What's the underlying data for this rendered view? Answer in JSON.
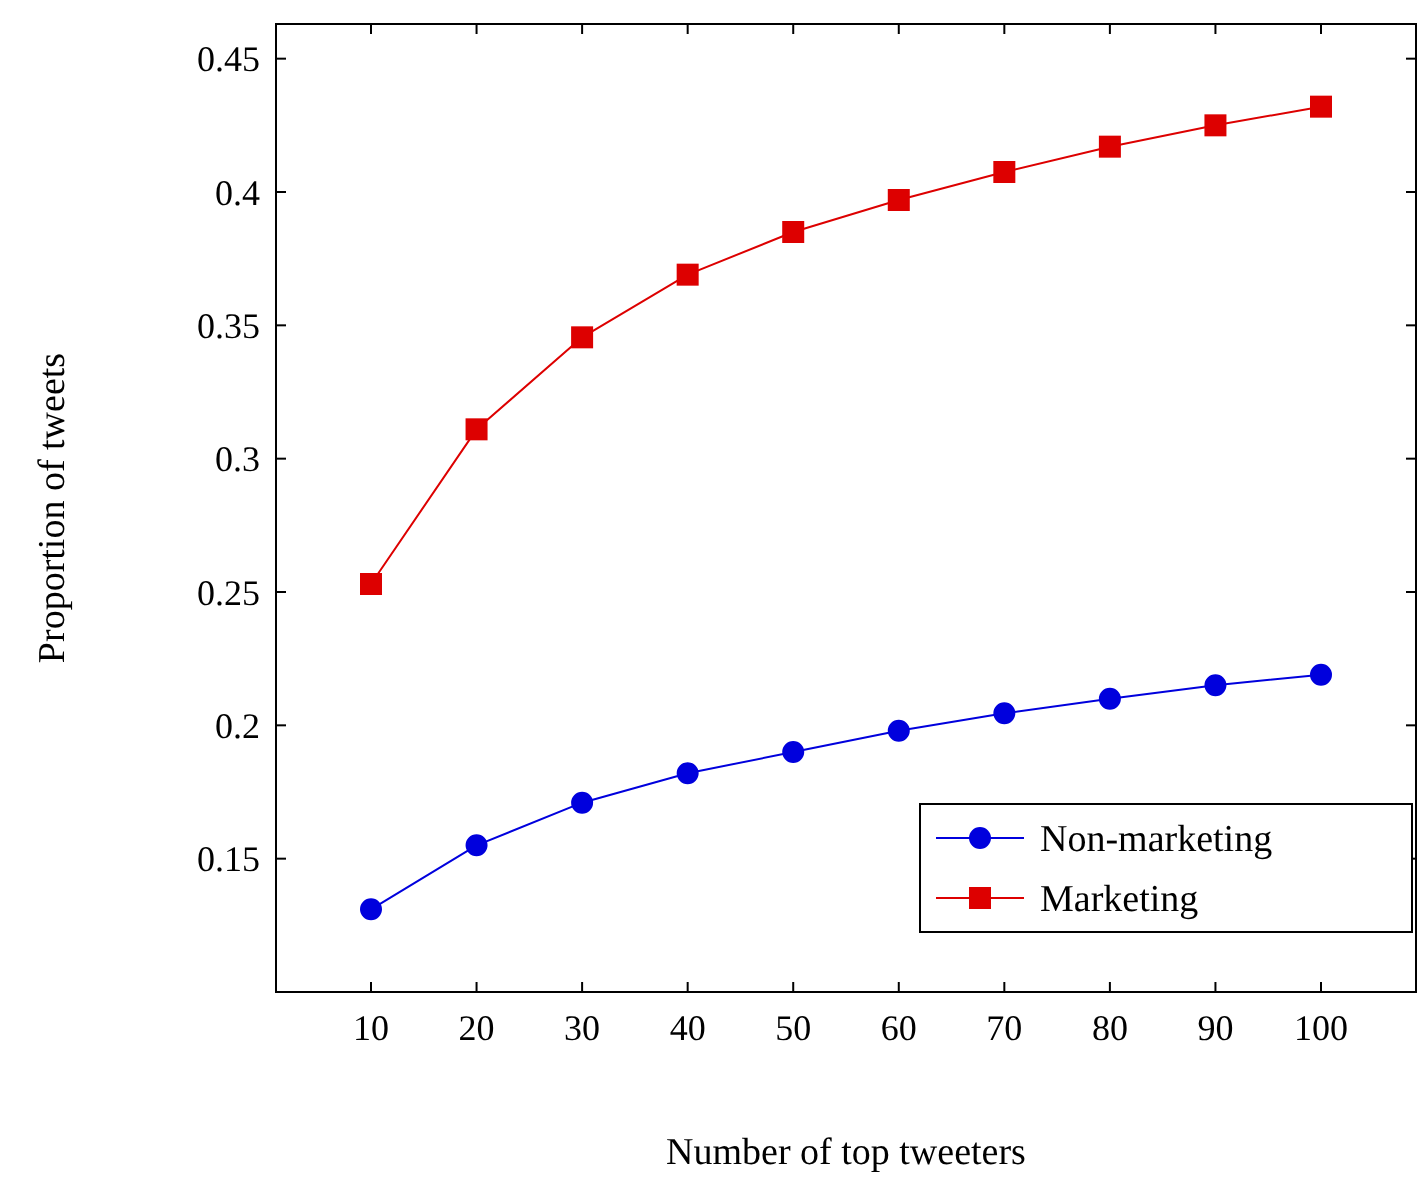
{
  "chart_data": {
    "type": "line",
    "xlabel": "Number of top tweeters",
    "ylabel": "Proportion of tweets",
    "x": [
      10,
      20,
      30,
      40,
      50,
      60,
      70,
      80,
      90,
      100
    ],
    "series": [
      {
        "name": "Non-marketing",
        "color": "#0000dd",
        "marker": "circle",
        "values": [
          0.131,
          0.155,
          0.171,
          0.182,
          0.19,
          0.198,
          0.2045,
          0.21,
          0.215,
          0.219
        ]
      },
      {
        "name": "Marketing",
        "color": "#dd0000",
        "marker": "square",
        "values": [
          0.253,
          0.311,
          0.3455,
          0.369,
          0.385,
          0.397,
          0.4075,
          0.417,
          0.425,
          0.432
        ]
      }
    ],
    "xlim": [
      1,
      109
    ],
    "xticks": [
      10,
      20,
      30,
      40,
      50,
      60,
      70,
      80,
      90,
      100
    ],
    "ylim": [
      0.1,
      0.463
    ],
    "yticks": [
      0.15,
      0.2,
      0.25,
      0.3,
      0.35,
      0.4,
      0.45
    ],
    "grid": false,
    "legend": "bottom right",
    "line_style": "solid"
  }
}
